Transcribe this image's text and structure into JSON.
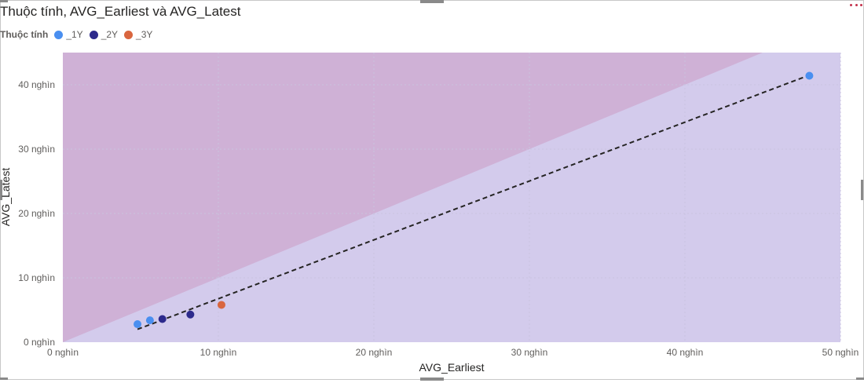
{
  "chart_data": {
    "type": "scatter",
    "title": "Thuộc tính, AVG_Earliest và AVG_Latest",
    "legend_title": "Thuộc tính",
    "legend_position": "top-left",
    "xlabel": "AVG_Earliest",
    "ylabel": "AVG_Latest",
    "xlim": [
      0,
      50000
    ],
    "ylim": [
      0,
      45000
    ],
    "x_ticks": [
      {
        "value": 0,
        "label": "0 nghìn"
      },
      {
        "value": 10000,
        "label": "10 nghìn"
      },
      {
        "value": 20000,
        "label": "20 nghìn"
      },
      {
        "value": 30000,
        "label": "30 nghìn"
      },
      {
        "value": 40000,
        "label": "40 nghìn"
      },
      {
        "value": 50000,
        "label": "50 nghìn"
      }
    ],
    "y_ticks": [
      {
        "value": 0,
        "label": "0 nghìn"
      },
      {
        "value": 10000,
        "label": "10 nghìn"
      },
      {
        "value": 20000,
        "label": "20 nghìn"
      },
      {
        "value": 30000,
        "label": "30 nghìn"
      },
      {
        "value": 40000,
        "label": "40 nghìn"
      }
    ],
    "grid": true,
    "symmetry_shading": true,
    "ratio_line": {
      "from": [
        4800,
        2000
      ],
      "to": [
        48000,
        41500
      ],
      "style": "dashed"
    },
    "series": [
      {
        "name": "_1Y",
        "color": "#4a8ff0",
        "points": [
          [
            4800,
            2800
          ],
          [
            5600,
            3400
          ],
          [
            48000,
            41400
          ]
        ]
      },
      {
        "name": "_2Y",
        "color": "#2d2a8c",
        "points": [
          [
            6400,
            3600
          ],
          [
            8200,
            4300
          ]
        ]
      },
      {
        "name": "_3Y",
        "color": "#d9663f",
        "points": [
          [
            10200,
            5800
          ]
        ]
      }
    ],
    "colors": {
      "upper_shade": "#cfb1d6",
      "lower_shade": "#d3cbec",
      "grid": "#c9c3df",
      "ratio_line": "#252423"
    }
  }
}
